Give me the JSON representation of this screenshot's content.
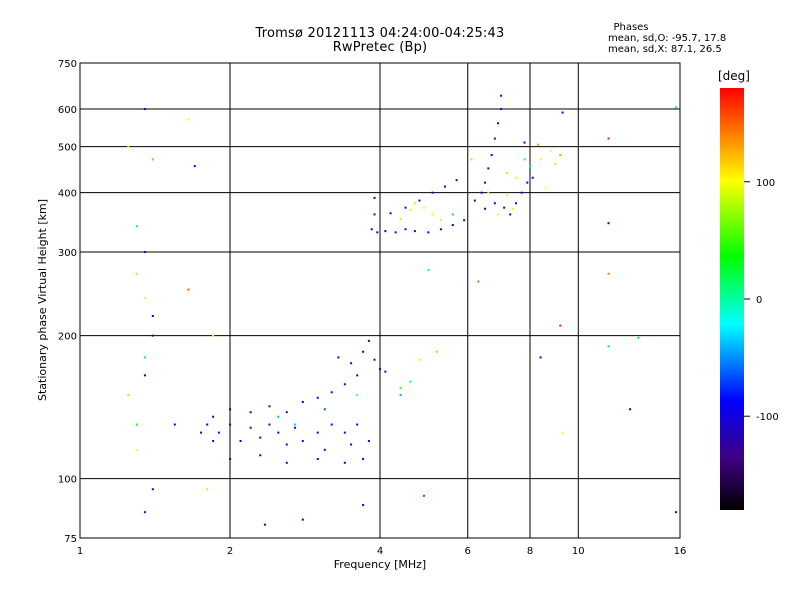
{
  "chart_data": {
    "type": "scatter",
    "title": "Tromsø 20121113 04:24:00-04:25:43",
    "subtitle": "RwPretec (Bp)",
    "xlabel": "Frequency [MHz]",
    "ylabel": "Stationary phase Virtual Height [km]",
    "x_scale": "log",
    "y_scale": "log",
    "xlim": [
      1,
      16
    ],
    "ylim": [
      75,
      750
    ],
    "x_ticks": [
      1,
      2,
      4,
      6,
      8,
      10,
      16
    ],
    "y_ticks": [
      75,
      100,
      200,
      300,
      400,
      500,
      600,
      750
    ],
    "grid": true,
    "info_title": "Phases",
    "info_lines": [
      "mean, sd,O: -95.7, 17.8",
      "mean, sd,X:  87.1, 26.5"
    ],
    "colorbar": {
      "label": "[deg]",
      "range": [
        -180,
        180
      ],
      "ticks": [
        100,
        0,
        -100
      ],
      "colors": [
        "#ff0000",
        "#ffff00",
        "#00ff00",
        "#00ffff",
        "#0000ff",
        "#400080",
        "#000000"
      ]
    },
    "series": [
      {
        "points": [
          [
            1.75,
            125,
            -95
          ],
          [
            1.8,
            130,
            -100
          ],
          [
            1.85,
            120,
            -98
          ],
          [
            1.9,
            125,
            -90
          ],
          [
            2.0,
            130,
            -102
          ],
          [
            2.1,
            120,
            -96
          ],
          [
            2.2,
            128,
            -99
          ],
          [
            2.3,
            122,
            -94
          ],
          [
            2.4,
            130,
            -105
          ],
          [
            2.5,
            125,
            -92
          ],
          [
            2.6,
            118,
            -100
          ],
          [
            2.7,
            128,
            -88
          ],
          [
            2.8,
            120,
            -96
          ],
          [
            3.0,
            125,
            -101
          ],
          [
            3.1,
            115,
            -97
          ],
          [
            3.2,
            130,
            -90
          ],
          [
            3.4,
            125,
            -95
          ],
          [
            3.5,
            118,
            -100
          ],
          [
            3.6,
            130,
            -88
          ],
          [
            3.8,
            120,
            -100
          ],
          [
            1.85,
            135,
            -100
          ],
          [
            2.0,
            140,
            -96
          ],
          [
            2.2,
            138,
            -92
          ],
          [
            2.4,
            142,
            -98
          ],
          [
            2.6,
            138,
            -100
          ],
          [
            2.8,
            145,
            -94
          ],
          [
            3.0,
            148,
            -102
          ],
          [
            3.2,
            152,
            -96
          ],
          [
            3.4,
            158,
            -98
          ],
          [
            3.6,
            165,
            -100
          ],
          [
            3.3,
            180,
            -97
          ],
          [
            3.5,
            175,
            -90
          ],
          [
            3.7,
            185,
            -95
          ],
          [
            3.9,
            178,
            -105
          ],
          [
            2.0,
            110,
            -100
          ],
          [
            2.3,
            112,
            -95
          ],
          [
            2.6,
            108,
            -98
          ],
          [
            3.0,
            110,
            -100
          ],
          [
            3.4,
            108,
            -96
          ],
          [
            3.7,
            110,
            -102
          ],
          [
            2.5,
            135,
            -40
          ],
          [
            2.7,
            130,
            -30
          ],
          [
            3.1,
            140,
            -60
          ],
          [
            3.6,
            150,
            -20
          ],
          [
            4.0,
            170,
            -100
          ],
          [
            4.1,
            168,
            -95
          ],
          [
            4.4,
            155,
            50
          ],
          [
            4.6,
            160,
            -10
          ],
          [
            4.8,
            178,
            90
          ],
          [
            5.2,
            185,
            120
          ],
          [
            3.85,
            335,
            -95
          ],
          [
            3.95,
            330,
            -100
          ],
          [
            4.1,
            332,
            -98
          ],
          [
            4.3,
            330,
            -102
          ],
          [
            4.5,
            335,
            -96
          ],
          [
            4.7,
            332,
            -100
          ],
          [
            5.0,
            330,
            -94
          ],
          [
            5.3,
            335,
            -98
          ],
          [
            5.6,
            342,
            -100
          ],
          [
            5.9,
            350,
            -95
          ],
          [
            4.2,
            362,
            -90
          ],
          [
            4.5,
            372,
            -100
          ],
          [
            4.8,
            385,
            -95
          ],
          [
            5.1,
            400,
            -98
          ],
          [
            5.4,
            412,
            -100
          ],
          [
            5.7,
            425,
            -96
          ],
          [
            4.7,
            380,
            110
          ],
          [
            4.9,
            372,
            100
          ],
          [
            5.1,
            360,
            95
          ],
          [
            4.6,
            368,
            90
          ],
          [
            4.4,
            352,
            85
          ],
          [
            5.3,
            350,
            105
          ],
          [
            5.6,
            360,
            20
          ],
          [
            3.9,
            390,
            -95
          ],
          [
            3.9,
            360,
            -100
          ],
          [
            6.2,
            385,
            -98
          ],
          [
            6.4,
            400,
            -100
          ],
          [
            6.5,
            420,
            -95
          ],
          [
            6.6,
            450,
            -102
          ],
          [
            6.7,
            480,
            -96
          ],
          [
            6.8,
            520,
            -100
          ],
          [
            6.9,
            560,
            -98
          ],
          [
            7.0,
            600,
            -95
          ],
          [
            7.0,
            640,
            -100
          ],
          [
            6.5,
            370,
            -96
          ],
          [
            6.8,
            380,
            -100
          ],
          [
            7.1,
            372,
            -94
          ],
          [
            7.3,
            360,
            -98
          ],
          [
            7.5,
            380,
            -100
          ],
          [
            7.7,
            400,
            -95
          ],
          [
            7.9,
            420,
            -98
          ],
          [
            8.1,
            430,
            -100
          ],
          [
            7.8,
            470,
            -20
          ],
          [
            8.0,
            455,
            0
          ],
          [
            8.4,
            470,
            95
          ],
          [
            8.8,
            490,
            100
          ],
          [
            9.0,
            460,
            110
          ],
          [
            9.2,
            480,
            130
          ],
          [
            8.6,
            410,
            100
          ],
          [
            9.3,
            590,
            -100
          ],
          [
            7.2,
            440,
            110
          ],
          [
            7.5,
            430,
            100
          ],
          [
            7.2,
            395,
            105
          ],
          [
            7.4,
            370,
            90
          ],
          [
            6.6,
            400,
            110
          ],
          [
            6.9,
            360,
            100
          ],
          [
            7.8,
            510,
            -100
          ],
          [
            8.3,
            505,
            130
          ],
          [
            6.1,
            470,
            80
          ],
          [
            1.35,
            600,
            -100
          ],
          [
            1.25,
            500,
            110
          ],
          [
            1.4,
            470,
            50
          ],
          [
            1.3,
            340,
            20
          ],
          [
            1.35,
            300,
            -100
          ],
          [
            1.3,
            270,
            80
          ],
          [
            1.35,
            240,
            100
          ],
          [
            1.4,
            220,
            -100
          ],
          [
            1.4,
            200,
            -95
          ],
          [
            1.35,
            180,
            20
          ],
          [
            1.35,
            165,
            -90
          ],
          [
            1.25,
            150,
            80
          ],
          [
            1.3,
            130,
            40
          ],
          [
            1.3,
            115,
            100
          ],
          [
            1.4,
            95,
            -100
          ],
          [
            1.35,
            85,
            -95
          ],
          [
            1.65,
            250,
            150
          ],
          [
            1.7,
            455,
            -100
          ],
          [
            1.65,
            570,
            100
          ],
          [
            1.85,
            200,
            95
          ],
          [
            1.8,
            95,
            110
          ],
          [
            2.35,
            80,
            -140
          ],
          [
            2.8,
            82,
            -150
          ],
          [
            3.7,
            88,
            -100
          ],
          [
            4.4,
            150,
            -40
          ],
          [
            4.9,
            92,
            170
          ],
          [
            5.0,
            275,
            -10
          ],
          [
            6.3,
            260,
            150
          ],
          [
            8.4,
            180,
            -100
          ],
          [
            9.2,
            210,
            170
          ],
          [
            9.3,
            125,
            100
          ],
          [
            11.5,
            520,
            170
          ],
          [
            11.5,
            345,
            -100
          ],
          [
            11.5,
            270,
            140
          ],
          [
            11.5,
            190,
            20
          ],
          [
            12.7,
            140,
            -100
          ],
          [
            13.2,
            198,
            30
          ],
          [
            15.7,
            605,
            -5
          ],
          [
            15.7,
            85,
            -100
          ],
          [
            3.8,
            195,
            -100
          ],
          [
            1.55,
            130,
            -100
          ]
        ]
      }
    ]
  }
}
